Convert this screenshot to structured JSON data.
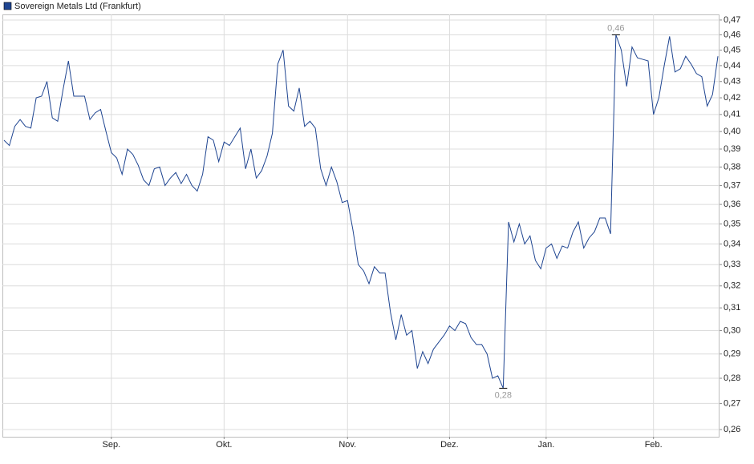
{
  "chart_data": {
    "type": "line",
    "log_scale": true,
    "grid": true,
    "legend": "top-left",
    "categories": [
      null,
      null,
      null,
      null,
      null,
      null,
      null,
      null,
      null,
      null,
      null,
      null,
      null,
      null,
      null,
      null,
      null,
      null,
      null,
      null,
      "Sep.",
      null,
      null,
      null,
      null,
      null,
      null,
      null,
      null,
      null,
      null,
      null,
      null,
      null,
      null,
      null,
      null,
      null,
      null,
      null,
      null,
      "Okt.",
      null,
      null,
      null,
      null,
      null,
      null,
      null,
      null,
      null,
      null,
      null,
      null,
      null,
      null,
      null,
      null,
      null,
      null,
      null,
      null,
      null,
      null,
      "Nov.",
      null,
      null,
      null,
      null,
      null,
      null,
      null,
      null,
      null,
      null,
      null,
      null,
      null,
      null,
      null,
      null,
      null,
      null,
      "Dez.",
      null,
      null,
      null,
      null,
      null,
      null,
      null,
      null,
      null,
      null,
      null,
      null,
      null,
      null,
      null,
      null,
      null,
      "Jan.",
      null,
      null,
      null,
      null,
      null,
      null,
      null,
      null,
      null,
      null,
      null,
      null,
      null,
      null,
      null,
      null,
      null,
      null,
      null,
      "Feb.",
      null,
      null,
      null,
      null,
      null,
      null,
      null,
      null,
      null,
      null,
      null,
      null
    ],
    "series": [
      {
        "name": "Sovereign Metals Ltd (Frankfurt)",
        "color": "#1f4591",
        "values": [
          0.395,
          0.392,
          0.403,
          0.407,
          0.403,
          0.402,
          0.42,
          0.421,
          0.43,
          0.408,
          0.406,
          0.425,
          0.443,
          0.421,
          0.421,
          0.421,
          0.407,
          0.411,
          0.413,
          0.4,
          0.388,
          0.385,
          0.376,
          0.39,
          0.387,
          0.381,
          0.373,
          0.37,
          0.379,
          0.38,
          0.37,
          0.374,
          0.377,
          0.371,
          0.376,
          0.37,
          0.367,
          0.376,
          0.397,
          0.395,
          0.383,
          0.394,
          0.392,
          0.397,
          0.402,
          0.379,
          0.39,
          0.374,
          0.378,
          0.386,
          0.399,
          0.441,
          0.45,
          0.415,
          0.412,
          0.426,
          0.403,
          0.406,
          0.402,
          0.379,
          0.37,
          0.38,
          0.372,
          0.361,
          0.362,
          0.347,
          0.33,
          0.327,
          0.321,
          0.329,
          0.326,
          0.326,
          0.308,
          0.296,
          0.307,
          0.298,
          0.3,
          0.284,
          0.291,
          0.286,
          0.292,
          0.295,
          0.298,
          0.302,
          0.3,
          0.304,
          0.303,
          0.297,
          0.294,
          0.294,
          0.29,
          0.28,
          0.281,
          0.276,
          0.351,
          0.341,
          0.35,
          0.34,
          0.344,
          0.332,
          0.328,
          0.338,
          0.34,
          0.333,
          0.339,
          0.338,
          0.346,
          0.351,
          0.338,
          0.343,
          0.346,
          0.353,
          0.353,
          0.345,
          0.46,
          0.45,
          0.427,
          0.452,
          0.445,
          0.444,
          0.443,
          0.41,
          0.42,
          0.44,
          0.459,
          0.436,
          0.438,
          0.446,
          0.441,
          0.435,
          0.433,
          0.415,
          0.422,
          0.446
        ],
        "value_labels": [
          null,
          null,
          null,
          null,
          null,
          null,
          null,
          null,
          null,
          null,
          null,
          null,
          null,
          null,
          null,
          null,
          null,
          null,
          null,
          null,
          null,
          null,
          null,
          null,
          null,
          null,
          null,
          null,
          null,
          null,
          null,
          null,
          null,
          null,
          null,
          null,
          null,
          null,
          null,
          null,
          null,
          null,
          null,
          null,
          null,
          null,
          null,
          null,
          null,
          null,
          null,
          null,
          null,
          null,
          null,
          null,
          null,
          null,
          null,
          null,
          null,
          null,
          null,
          null,
          null,
          null,
          null,
          null,
          null,
          null,
          null,
          null,
          null,
          null,
          null,
          null,
          null,
          null,
          null,
          null,
          null,
          null,
          null,
          null,
          null,
          null,
          null,
          null,
          null,
          null,
          null,
          null,
          null,
          "0,28",
          null,
          null,
          null,
          null,
          null,
          null,
          null,
          null,
          null,
          null,
          null,
          null,
          null,
          null,
          null,
          null,
          null,
          null,
          null,
          null,
          "0,46",
          null,
          null,
          null,
          null,
          null,
          null,
          null,
          null,
          null,
          null,
          null,
          null,
          null,
          null,
          null,
          null,
          null,
          null,
          null
        ]
      }
    ],
    "ylim": [
      0.2573,
      0.4738
    ],
    "yticks": [
      {
        "value": 0.26,
        "label": "0,26"
      },
      {
        "value": 0.27,
        "label": "0,27"
      },
      {
        "value": 0.28,
        "label": "0,28"
      },
      {
        "value": 0.29,
        "label": "0,29"
      },
      {
        "value": 0.3,
        "label": "0,30"
      },
      {
        "value": 0.31,
        "label": "0,31"
      },
      {
        "value": 0.32,
        "label": "0,32"
      },
      {
        "value": 0.33,
        "label": "0,33"
      },
      {
        "value": 0.34,
        "label": "0,34"
      },
      {
        "value": 0.35,
        "label": "0,35"
      },
      {
        "value": 0.36,
        "label": "0,36"
      },
      {
        "value": 0.37,
        "label": "0,37"
      },
      {
        "value": 0.38,
        "label": "0,38"
      },
      {
        "value": 0.39,
        "label": "0,39"
      },
      {
        "value": 0.4,
        "label": "0,40"
      },
      {
        "value": 0.41,
        "label": "0,41"
      },
      {
        "value": 0.42,
        "label": "0,42"
      },
      {
        "value": 0.43,
        "label": "0,43"
      },
      {
        "value": 0.44,
        "label": "0,44"
      },
      {
        "value": 0.45,
        "label": "0,45"
      },
      {
        "value": 0.46,
        "label": "0,46"
      },
      {
        "value": 0.47,
        "label": "0,47"
      }
    ]
  }
}
